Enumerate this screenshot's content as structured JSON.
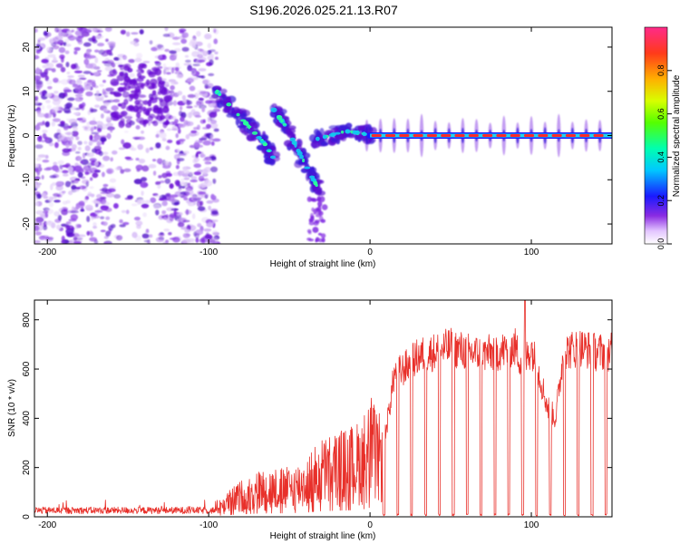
{
  "figure_title": "S196.2026.025.21.13.R07",
  "colors": {
    "snr_line": "#e8302a",
    "trend_core": "#ff2a2a",
    "trend_halo": "#23d5e8",
    "scatter": "#7a1fe0"
  },
  "colorbar": {
    "label": "Normalized spectral amplitude",
    "ticks": [
      "0.0",
      "0.2",
      "0.4",
      "0.6",
      "0.8"
    ],
    "tick_values": [
      0.0,
      0.2,
      0.4,
      0.6,
      0.8
    ]
  },
  "chart_data": [
    {
      "type": "heatmap",
      "title": "S196.2026.025.21.13.R07",
      "xlabel": "Height of straight line (km)",
      "ylabel": "Frequency (Hz)",
      "xlim": [
        -208,
        150
      ],
      "ylim": [
        -24.5,
        24.5
      ],
      "x_ticks": [
        -200,
        -100,
        0,
        100
      ],
      "x_tick_labels": [
        "-200",
        "-100",
        "0",
        "100"
      ],
      "y_ticks": [
        -20,
        -10,
        0,
        10,
        20
      ],
      "y_tick_labels": [
        "-20",
        "-10",
        "0",
        "10",
        "20"
      ],
      "ridge_segments": [
        {
          "name": "upper ridge",
          "x": [
            -95,
            -85,
            -75,
            -65,
            -60
          ],
          "freq": [
            10,
            6,
            2,
            -2,
            -5
          ],
          "amplitude": 0.3
        },
        {
          "name": "lower ridge",
          "x": [
            -60,
            -52,
            -45,
            -38,
            -32
          ],
          "freq": [
            6,
            2,
            -3,
            -8,
            -12
          ],
          "amplitude": 0.25
        },
        {
          "name": "transition",
          "x": [
            -35,
            -25,
            -15,
            -5,
            0
          ],
          "freq": [
            -1,
            0,
            1,
            0.5,
            0
          ],
          "amplitude": 0.4
        },
        {
          "name": "zero-frequency line",
          "x": [
            0,
            150
          ],
          "freq": [
            0,
            0
          ],
          "amplitude": 0.95
        }
      ],
      "scatter_region_x": [
        -208,
        -95
      ],
      "colorbar": "Normalized spectral amplitude"
    },
    {
      "type": "line",
      "xlabel": "Height of straight line (km)",
      "ylabel": "SNR (10 * v/v)",
      "xlim": [
        -208,
        150
      ],
      "ylim": [
        0,
        880
      ],
      "x_ticks": [
        -200,
        -100,
        0,
        100
      ],
      "x_tick_labels": [
        "-200",
        "-100",
        "0",
        "100"
      ],
      "y_ticks": [
        0,
        200,
        400,
        600,
        800
      ],
      "y_tick_labels": [
        "0",
        "200",
        "400",
        "600",
        "800"
      ],
      "series": [
        {
          "name": "SNR",
          "x": [
            -208,
            -180,
            -150,
            -120,
            -100,
            -90,
            -80,
            -70,
            -60,
            -50,
            -40,
            -30,
            -20,
            -10,
            -5,
            0,
            5,
            10,
            15,
            20,
            30,
            40,
            50,
            60,
            70,
            80,
            90,
            95,
            100,
            105,
            110,
            115,
            120,
            130,
            140,
            150
          ],
          "y": [
            20,
            22,
            25,
            28,
            30,
            70,
            110,
            140,
            150,
            150,
            180,
            240,
            260,
            280,
            300,
            380,
            300,
            380,
            620,
            640,
            700,
            720,
            740,
            720,
            710,
            720,
            740,
            660,
            740,
            620,
            480,
            430,
            720,
            740,
            720,
            720
          ],
          "peak": {
            "x": 96,
            "y": 880
          }
        }
      ]
    }
  ]
}
